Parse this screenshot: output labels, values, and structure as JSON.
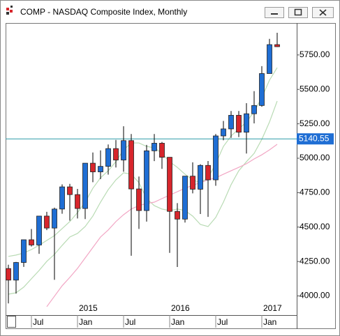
{
  "chart_data": {
    "type": "candlestick",
    "title": "COMP - NASDAQ Composite Index, Monthly",
    "categories": [
      null,
      null,
      null,
      "Jul",
      null,
      null,
      null,
      null,
      null,
      "Jan",
      null,
      null,
      null,
      null,
      null,
      "Jul",
      null,
      null,
      null,
      null,
      null,
      "Jan",
      null,
      null,
      null,
      null,
      null,
      "Jul",
      null,
      null,
      null,
      null,
      null,
      "Jan",
      null,
      null
    ],
    "category_years": [
      null,
      null,
      null,
      null,
      null,
      null,
      null,
      null,
      null,
      "2015",
      null,
      null,
      null,
      null,
      null,
      null,
      null,
      null,
      null,
      null,
      null,
      "2016",
      null,
      null,
      null,
      null,
      null,
      null,
      null,
      null,
      null,
      null,
      null,
      "2017",
      null,
      null
    ],
    "open": [
      4199,
      4115,
      4243,
      4408,
      4370,
      4580,
      4493,
      4631,
      4792,
      4736,
      4635,
      4964,
      4901,
      4941,
      5070,
      4987,
      5128,
      4777,
      4620,
      5054,
      5109,
      5007,
      4614,
      4558,
      4870,
      4775,
      4948,
      4843,
      5162,
      5213,
      5312,
      5189,
      5323,
      5383,
      5615,
      5825
    ],
    "high": [
      4227,
      4247,
      4409,
      4486,
      4580,
      4611,
      4641,
      4810,
      4814,
      4777,
      4964,
      5042,
      5057,
      5100,
      5133,
      5232,
      5176,
      4867,
      5097,
      5176,
      5118,
      5007,
      4674,
      4870,
      4970,
      4956,
      4980,
      5176,
      5271,
      5343,
      5343,
      5400,
      5487,
      5669,
      5867,
      5911
    ],
    "low": [
      3946,
      4017,
      4211,
      4359,
      4306,
      4478,
      4117,
      4597,
      4547,
      4563,
      4558,
      4826,
      4848,
      4881,
      4933,
      4902,
      4292,
      4487,
      4540,
      4979,
      4923,
      4313,
      4210,
      4533,
      4745,
      4595,
      4574,
      4800,
      5130,
      5148,
      5154,
      5034,
      5253,
      5374,
      5615,
      5808
    ],
    "close": [
      4115,
      4243,
      4408,
      4370,
      4580,
      4493,
      4631,
      4792,
      4736,
      4635,
      4964,
      4901,
      4941,
      5070,
      4987,
      5128,
      4777,
      4620,
      5054,
      5109,
      5007,
      4614,
      4558,
      4870,
      4775,
      4948,
      4843,
      5162,
      5213,
      5312,
      5189,
      5323,
      5383,
      5615,
      5825,
      5810
    ],
    "up_color": "#1f6ed4",
    "down_color": "#d7262c",
    "lines": [
      {
        "color": "#b9dbb4",
        "values": [
          4287,
          4297,
          4312,
          4337,
          4368,
          4403,
          4438,
          4489,
          4540,
          4605,
          4681,
          4782,
          4858,
          4909,
          4975,
          5061,
          5111,
          5111,
          5086,
          5076,
          5035,
          4975,
          4934,
          4884,
          4843,
          4823,
          4858,
          4960,
          5086,
          5162,
          5213,
          5263,
          5339,
          5440,
          5567,
          5658
        ]
      },
      {
        "color": "#b9dbb4",
        "values": [
          4013,
          4023,
          4064,
          4125,
          4185,
          4251,
          4302,
          4367,
          4428,
          4454,
          4504,
          4580,
          4681,
          4772,
          4843,
          4894,
          4884,
          4823,
          4707,
          4656,
          4631,
          4620,
          4631,
          4620,
          4580,
          4519,
          4504,
          4570,
          4681,
          4808,
          4909,
          4975,
          5035,
          5137,
          5263,
          5415
        ]
      },
      {
        "color": "#f2a6c4",
        "values": [
          null,
          null,
          null,
          null,
          null,
          3922,
          3998,
          4074,
          4135,
          4200,
          4276,
          4352,
          4428,
          4479,
          4540,
          4590,
          4631,
          4656,
          4671,
          4681,
          4707,
          4732,
          4757,
          4782,
          4803,
          4823,
          4843,
          4858,
          4884,
          4909,
          4934,
          4960,
          4995,
          5025,
          5061,
          5101
        ]
      }
    ],
    "current_value": 5140.55,
    "current_color": "#2b9aa8",
    "ylim": [
      3861,
      5982
    ],
    "yticks": [
      {
        "value": 4000,
        "label": "4000.00"
      },
      {
        "value": 4250,
        "label": "4250.00"
      },
      {
        "value": 4500,
        "label": "4500.00"
      },
      {
        "value": 4750,
        "label": "4750.00"
      },
      {
        "value": 5000,
        "label": "5000.00"
      },
      {
        "value": 5250,
        "label": "5250.00"
      },
      {
        "value": 5500,
        "label": "5500.00"
      },
      {
        "value": 5750,
        "label": "5750.00"
      }
    ]
  }
}
